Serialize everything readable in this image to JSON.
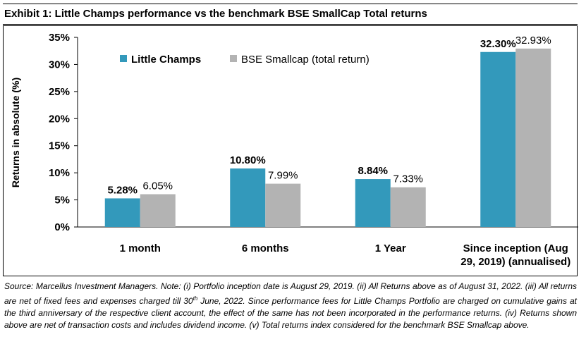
{
  "header": {
    "title": "Exhibit 1: Little Champs performance vs the benchmark BSE SmallCap Total returns"
  },
  "footnote": {
    "seg1": "Source: Marcellus Investment Managers. Note: (i) Portfolio inception date is August 29, 2019. (ii) All Returns above as of August 31, 2022. (iii) All returns are net of fixed fees and expenses charged till 30",
    "sup": "th",
    "seg2": " June, 2022. Since performance fees for Little Champs Portfolio are charged on cumulative gains at the third anniversary of the respective client account, the effect of the same has not been incorporated in the performance returns. (iv) Returns shown above are net of transaction costs and includes dividend income. (v) Total returns index considered for the benchmark BSE Smallcap above."
  },
  "chart_data": {
    "type": "bar",
    "title": "",
    "xlabel": "",
    "ylabel": "Returns  in absolute (%)",
    "ylim": [
      0,
      35
    ],
    "yticks": [
      "0%",
      "5%",
      "10%",
      "15%",
      "20%",
      "25%",
      "30%",
      "35%"
    ],
    "categories": [
      [
        "1 month"
      ],
      [
        "6 months"
      ],
      [
        "1 Year"
      ],
      [
        "Since inception (Aug",
        "29, 2019) (annualised)"
      ]
    ],
    "series": [
      {
        "name": "Little Champs",
        "color": "#3399bb",
        "values": [
          5.28,
          10.8,
          8.84,
          32.3
        ],
        "labels": [
          "5.28%",
          "10.80%",
          "8.84%",
          "32.30%"
        ],
        "label_bold": true
      },
      {
        "name": "BSE Smallcap (total return)",
        "color": "#b3b3b3",
        "values": [
          6.05,
          7.99,
          7.33,
          32.93
        ],
        "labels": [
          "6.05%",
          "7.99%",
          "7.33%",
          "32.93%"
        ],
        "label_bold": false
      }
    ],
    "legend": "top-left",
    "grid": false
  }
}
